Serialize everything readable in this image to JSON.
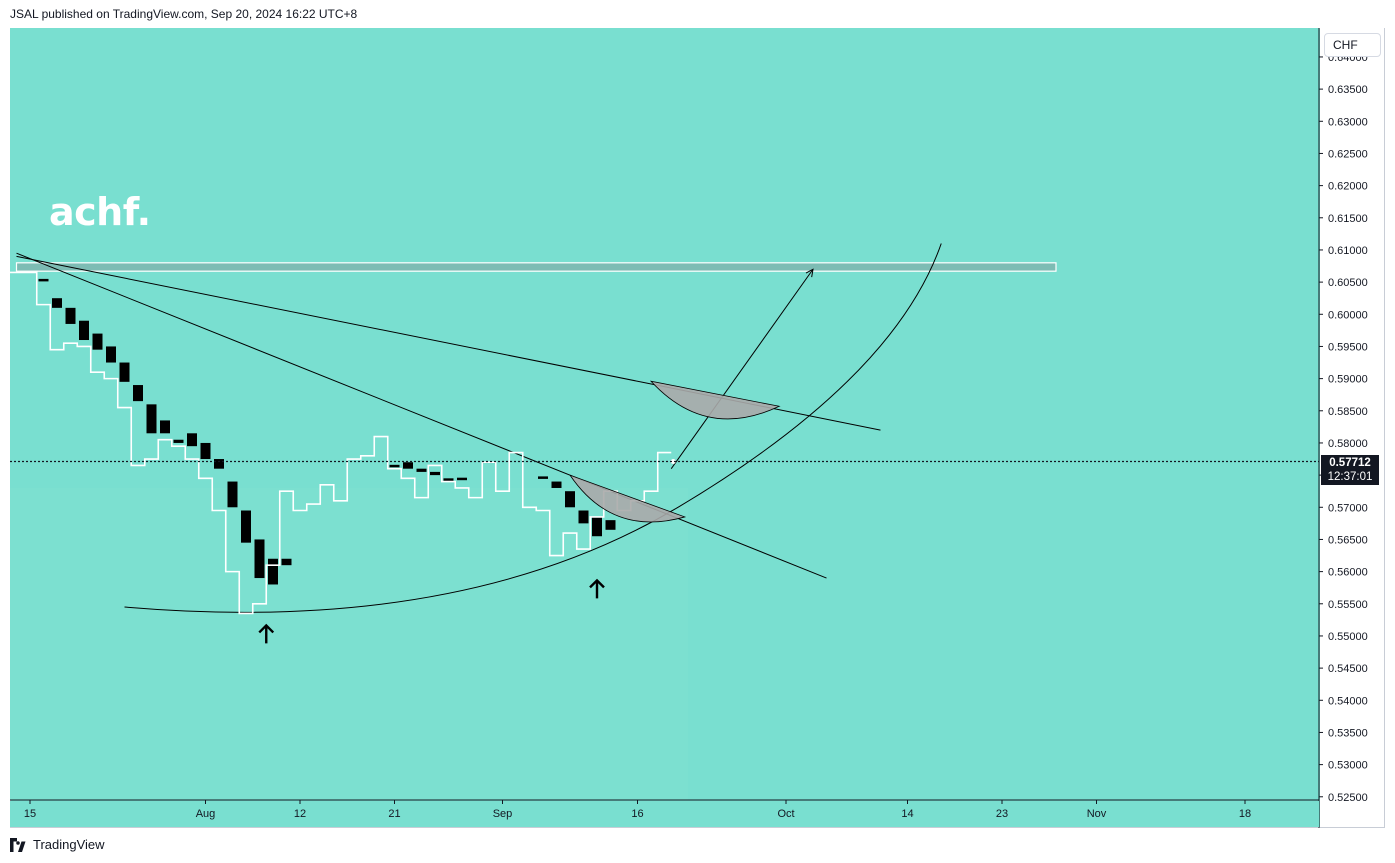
{
  "header": {
    "text": "JSAL published on TradingView.com, Sep 20, 2024 16:22 UTC+8"
  },
  "symbol": {
    "label": "CHF"
  },
  "watermark": {
    "text": "achf."
  },
  "footer": {
    "brand": "TradingView"
  },
  "price_marker": {
    "price": "0.57712",
    "countdown": "12:37:01"
  },
  "colors": {
    "background": "#79dfd0",
    "candle": "#000000",
    "line": "#ffffff",
    "zone": "#7dbcb4",
    "arc": "#aaaaaa"
  },
  "chart_data": {
    "type": "line",
    "ylim": [
      0.5245,
      0.6445
    ],
    "y_ticks": [
      {
        "value": 0.525,
        "label": "0.52500"
      },
      {
        "value": 0.53,
        "label": "0.53000"
      },
      {
        "value": 0.535,
        "label": "0.53500"
      },
      {
        "value": 0.54,
        "label": "0.54000"
      },
      {
        "value": 0.545,
        "label": "0.54500"
      },
      {
        "value": 0.55,
        "label": "0.55000"
      },
      {
        "value": 0.555,
        "label": "0.55500"
      },
      {
        "value": 0.56,
        "label": "0.56000"
      },
      {
        "value": 0.565,
        "label": "0.56500"
      },
      {
        "value": 0.57,
        "label": "0.57000"
      },
      {
        "value": 0.575,
        "label": "0.57500"
      },
      {
        "value": 0.58,
        "label": "0.58000"
      },
      {
        "value": 0.585,
        "label": "0.58500"
      },
      {
        "value": 0.59,
        "label": "0.59000"
      },
      {
        "value": 0.595,
        "label": "0.59500"
      },
      {
        "value": 0.6,
        "label": "0.60000"
      },
      {
        "value": 0.605,
        "label": "0.60500"
      },
      {
        "value": 0.61,
        "label": "0.61000"
      },
      {
        "value": 0.615,
        "label": "0.61500"
      },
      {
        "value": 0.62,
        "label": "0.62000"
      },
      {
        "value": 0.625,
        "label": "0.62500"
      },
      {
        "value": 0.63,
        "label": "0.63000"
      },
      {
        "value": 0.635,
        "label": "0.63500"
      },
      {
        "value": 0.64,
        "label": "0.64000"
      }
    ],
    "x_ticks": [
      {
        "label": "15",
        "index": 0
      },
      {
        "label": "Aug",
        "index": 13
      },
      {
        "label": "12",
        "index": 20
      },
      {
        "label": "21",
        "index": 27
      },
      {
        "label": "Sep",
        "index": 35
      },
      {
        "label": "16",
        "index": 45
      },
      {
        "label": "Oct",
        "index": 56
      },
      {
        "label": "14",
        "index": 65
      },
      {
        "label": "23",
        "index": 72
      },
      {
        "label": "Nov",
        "index": 79
      },
      {
        "label": "18",
        "index": 90
      }
    ],
    "step_line": [
      {
        "index": -1,
        "close": 0.6065
      },
      {
        "index": 0,
        "close": 0.6065
      },
      {
        "index": 1,
        "close": 0.6015
      },
      {
        "index": 2,
        "close": 0.5945
      },
      {
        "index": 3,
        "close": 0.5955
      },
      {
        "index": 4,
        "close": 0.595
      },
      {
        "index": 5,
        "close": 0.591
      },
      {
        "index": 6,
        "close": 0.59
      },
      {
        "index": 7,
        "close": 0.5855
      },
      {
        "index": 8,
        "close": 0.5765
      },
      {
        "index": 9,
        "close": 0.5775
      },
      {
        "index": 10,
        "close": 0.5805
      },
      {
        "index": 11,
        "close": 0.5795
      },
      {
        "index": 12,
        "close": 0.5775
      },
      {
        "index": 13,
        "close": 0.5745
      },
      {
        "index": 14,
        "close": 0.5695
      },
      {
        "index": 15,
        "close": 0.56
      },
      {
        "index": 16,
        "close": 0.5535
      },
      {
        "index": 17,
        "close": 0.555
      },
      {
        "index": 18,
        "close": 0.561
      },
      {
        "index": 19,
        "close": 0.5725
      },
      {
        "index": 20,
        "close": 0.5695
      },
      {
        "index": 21,
        "close": 0.5705
      },
      {
        "index": 22,
        "close": 0.5735
      },
      {
        "index": 23,
        "close": 0.571
      },
      {
        "index": 24,
        "close": 0.5775
      },
      {
        "index": 25,
        "close": 0.578
      },
      {
        "index": 26,
        "close": 0.581
      },
      {
        "index": 27,
        "close": 0.576
      },
      {
        "index": 28,
        "close": 0.5745
      },
      {
        "index": 29,
        "close": 0.5715
      },
      {
        "index": 30,
        "close": 0.5765
      },
      {
        "index": 31,
        "close": 0.574
      },
      {
        "index": 32,
        "close": 0.573
      },
      {
        "index": 33,
        "close": 0.5715
      },
      {
        "index": 34,
        "close": 0.577
      },
      {
        "index": 35,
        "close": 0.5725
      },
      {
        "index": 36,
        "close": 0.5785
      },
      {
        "index": 37,
        "close": 0.57
      },
      {
        "index": 38,
        "close": 0.5695
      },
      {
        "index": 39,
        "close": 0.5625
      },
      {
        "index": 40,
        "close": 0.566
      },
      {
        "index": 41,
        "close": 0.5635
      },
      {
        "index": 42,
        "close": 0.5685
      },
      {
        "index": 43,
        "close": 0.5725
      },
      {
        "index": 44,
        "close": 0.5695
      },
      {
        "index": 45,
        "close": 0.571
      },
      {
        "index": 46,
        "close": 0.5725
      },
      {
        "index": 47,
        "close": 0.5785
      }
    ],
    "candles": [
      {
        "index": 1,
        "open": 0.6055,
        "close": 0.6053
      },
      {
        "index": 2,
        "open": 0.6025,
        "close": 0.601
      },
      {
        "index": 3,
        "open": 0.601,
        "close": 0.5985
      },
      {
        "index": 4,
        "open": 0.599,
        "close": 0.596
      },
      {
        "index": 5,
        "open": 0.597,
        "close": 0.5945
      },
      {
        "index": 6,
        "open": 0.595,
        "close": 0.5925
      },
      {
        "index": 7,
        "open": 0.5925,
        "close": 0.5895
      },
      {
        "index": 8,
        "open": 0.589,
        "close": 0.5865
      },
      {
        "index": 9,
        "open": 0.586,
        "close": 0.5815
      },
      {
        "index": 10,
        "open": 0.5835,
        "close": 0.5815
      },
      {
        "index": 11,
        "open": 0.5805,
        "close": 0.58
      },
      {
        "index": 12,
        "open": 0.5815,
        "close": 0.5795
      },
      {
        "index": 13,
        "open": 0.58,
        "close": 0.5775
      },
      {
        "index": 14,
        "open": 0.5775,
        "close": 0.576
      },
      {
        "index": 15,
        "open": 0.574,
        "close": 0.57
      },
      {
        "index": 16,
        "open": 0.5695,
        "close": 0.5645
      },
      {
        "index": 17,
        "open": 0.565,
        "close": 0.559
      },
      {
        "index": 18,
        "open": 0.562,
        "close": 0.558
      },
      {
        "index": 19,
        "open": 0.562,
        "close": 0.561
      },
      {
        "index": 27,
        "open": 0.5766,
        "close": 0.5764
      },
      {
        "index": 28,
        "open": 0.577,
        "close": 0.576
      },
      {
        "index": 29,
        "open": 0.576,
        "close": 0.5755
      },
      {
        "index": 30,
        "open": 0.5755,
        "close": 0.575
      },
      {
        "index": 31,
        "open": 0.5745,
        "close": 0.574
      },
      {
        "index": 32,
        "open": 0.5746,
        "close": 0.5744
      },
      {
        "index": 38,
        "open": 0.5748,
        "close": 0.5746
      },
      {
        "index": 39,
        "open": 0.574,
        "close": 0.573
      },
      {
        "index": 40,
        "open": 0.5725,
        "close": 0.57
      },
      {
        "index": 41,
        "open": 0.5695,
        "close": 0.5675
      },
      {
        "index": 42,
        "open": 0.5685,
        "close": 0.5655
      },
      {
        "index": 43,
        "open": 0.568,
        "close": 0.5665
      }
    ],
    "current_price": 0.57712,
    "resistance_zone": {
      "from_index": -1,
      "to_index": 76,
      "low": 0.6067,
      "high": 0.608
    },
    "trendlines": [
      {
        "name": "upper",
        "from": {
          "index": -1,
          "value": 0.609
        },
        "to": {
          "index": 63,
          "value": 0.582
        }
      },
      {
        "name": "lower",
        "from": {
          "index": -1,
          "value": 0.6095
        },
        "to": {
          "index": 59,
          "value": 0.559
        }
      }
    ],
    "projection_arrow": {
      "from": {
        "index": 47.5,
        "value": 0.576
      },
      "to": {
        "index": 58,
        "value": 0.607
      }
    },
    "arrows_up": [
      {
        "index": 17.5,
        "value": 0.5535
      },
      {
        "index": 42,
        "value": 0.5605
      }
    ]
  }
}
